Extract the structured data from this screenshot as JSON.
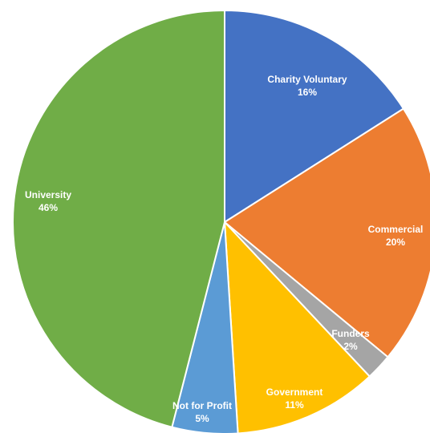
{
  "chart_data": {
    "type": "pie",
    "start": "top",
    "direction": "clockwise",
    "slices": [
      {
        "label": "Charity Voluntary",
        "value": 16,
        "value_label": "16%",
        "color": "#4472C4"
      },
      {
        "label": "Commercial",
        "value": 20,
        "value_label": "20%",
        "color": "#ED7D31"
      },
      {
        "label": "Funders",
        "value": 2,
        "value_label": "2%",
        "color": "#A5A5A5"
      },
      {
        "label": "Government",
        "value": 11,
        "value_label": "11%",
        "color": "#FFC000"
      },
      {
        "label": "Not for Profit",
        "value": 5,
        "value_label": "5%",
        "color": "#5B9BD5"
      },
      {
        "label": "University",
        "value": 46,
        "value_label": "46%",
        "color": "#70AD47"
      }
    ]
  }
}
